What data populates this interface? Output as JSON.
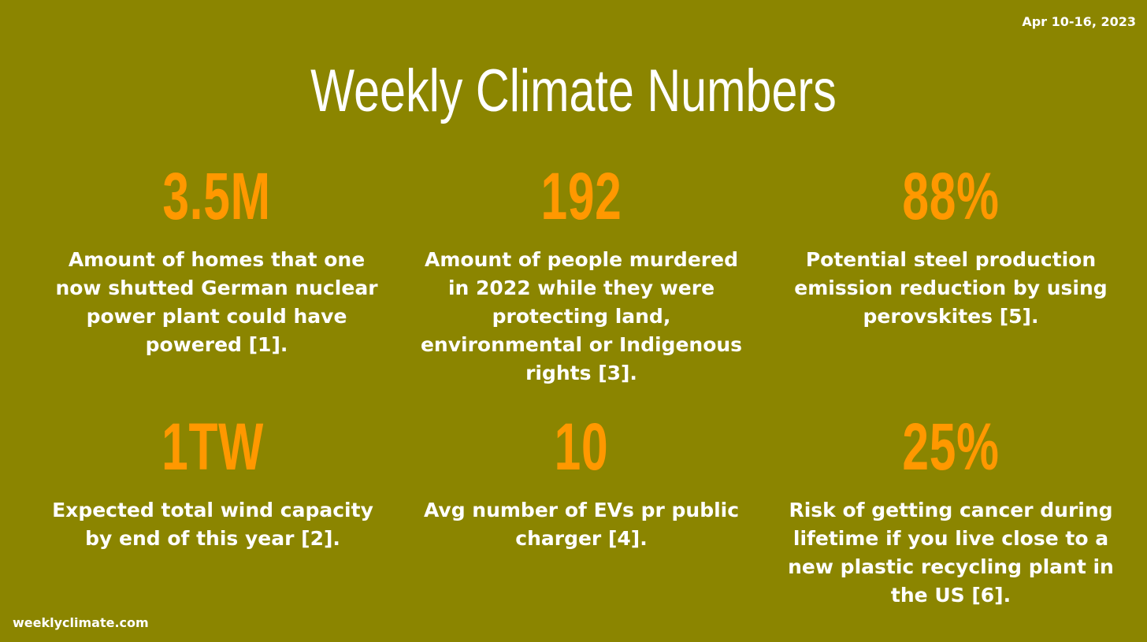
{
  "date_range": "Apr 10-16, 2023",
  "title": "Weekly Climate Numbers",
  "stats": [
    {
      "value": "3.5M",
      "description": "Amount of homes that one now shutted German nuclear power plant could have powered [1]."
    },
    {
      "value": "192",
      "description": "Amount of people murdered in 2022 while they were protecting land, environmental or Indigenous rights [3]."
    },
    {
      "value": "88%",
      "description": "Potential steel production emission reduction by using perovskites [5]."
    },
    {
      "value": "1TW",
      "description": "Expected total wind capacity by end of this year [2]."
    },
    {
      "value": "10",
      "description": "Avg number of EVs pr public charger [4]."
    },
    {
      "value": "25%",
      "description": "Risk of getting cancer during lifetime if you live close to a new plastic recycling plant in the US [6]."
    }
  ],
  "footer_site": "weeklyclimate.com",
  "colors": {
    "background": "#8b8500",
    "value": "#ff9800",
    "text": "#ffffff"
  }
}
